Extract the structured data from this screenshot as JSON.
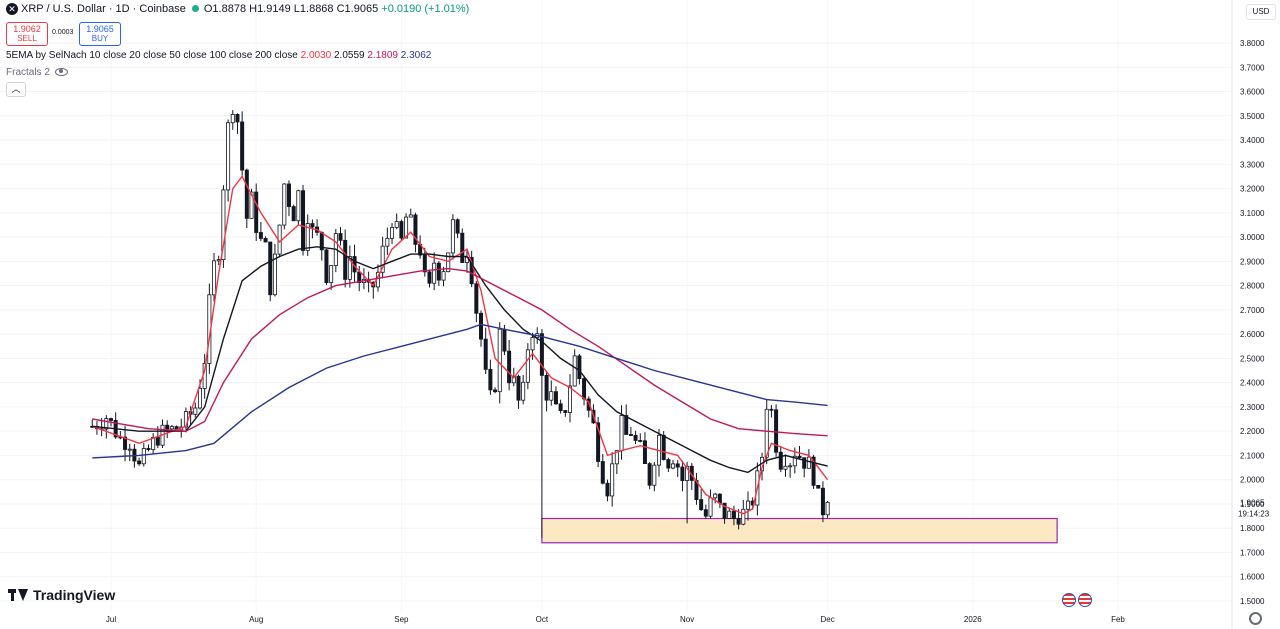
{
  "header": {
    "symbol": "XRP / U.S. Dollar · 1D · Coinbase",
    "open": "O1.8878",
    "high": "H1.9149",
    "low": "L1.8868",
    "close": "C1.9065",
    "change": "+0.0190 (+1.01%)",
    "sell_price": "1.9062",
    "sell_label": "SELL",
    "spread": "0.0003",
    "buy_price": "1.9065",
    "buy_label": "BUY",
    "currency": "USD"
  },
  "indicators": {
    "ema_label": "5EMA by SelNach 10 close 20 close 50 close 100 close 200 close",
    "ema_values": [
      "2.0030",
      "2.0559",
      "2.1809",
      "2.3062"
    ],
    "ema_colors": [
      "#f23645",
      "#131722",
      "#c2185b",
      "#283593"
    ],
    "fractals_label": "Fractals 2"
  },
  "branding": {
    "logo_text": "TradingView"
  },
  "colors": {
    "up": "#089981",
    "down": "#f23645",
    "candle": "#131722",
    "zone_fill": "#fde8c4",
    "zone_border": "#9c27b0"
  },
  "chart_data": {
    "type": "candlestick",
    "ylim": [
      1.5,
      3.9
    ],
    "y_ticks": [
      "3.8000",
      "3.7000",
      "3.6000",
      "3.5000",
      "3.4000",
      "3.3000",
      "3.2000",
      "3.1000",
      "3.0000",
      "2.9000",
      "2.8000",
      "2.7000",
      "2.6000",
      "2.5000",
      "2.4000",
      "2.3000",
      "2.2000",
      "2.1000",
      "2.0000",
      "1.9000",
      "1.8000",
      "1.7000",
      "1.6000",
      "1.5000"
    ],
    "x_ticks": [
      "Jul",
      "Aug",
      "Sep",
      "Oct",
      "Nov",
      "Dec",
      "2026",
      "Feb"
    ],
    "x_tick_days": [
      4,
      35,
      66,
      96,
      127,
      157,
      188,
      219
    ],
    "last_price": "1.9065",
    "countdown": "19:14:23",
    "support_zone": {
      "from_day": 96,
      "to_day": 206,
      "low": 1.74,
      "high": 1.84
    },
    "close_path": [
      [
        0,
        2.22
      ],
      [
        3,
        2.26
      ],
      [
        6,
        2.17
      ],
      [
        8,
        2.16
      ],
      [
        10,
        2.05
      ],
      [
        12,
        2.12
      ],
      [
        14,
        2.18
      ],
      [
        16,
        2.2
      ],
      [
        18,
        2.21
      ],
      [
        20,
        2.24
      ],
      [
        22,
        2.3
      ],
      [
        24,
        2.5
      ],
      [
        25,
        2.72
      ],
      [
        26,
        2.88
      ],
      [
        27,
        2.95
      ],
      [
        28,
        3.22
      ],
      [
        29,
        3.45
      ],
      [
        30,
        3.55
      ],
      [
        31,
        3.48
      ],
      [
        32,
        3.28
      ],
      [
        33,
        3.08
      ],
      [
        34,
        3.15
      ],
      [
        35,
        3.05
      ],
      [
        36,
        2.98
      ],
      [
        37,
        2.95
      ],
      [
        38,
        2.8
      ],
      [
        39,
        2.9
      ],
      [
        40,
        3.05
      ],
      [
        41,
        3.22
      ],
      [
        42,
        3.15
      ],
      [
        43,
        3.1
      ],
      [
        44,
        3.18
      ],
      [
        45,
        2.98
      ],
      [
        46,
        3.1
      ],
      [
        47,
        3.02
      ],
      [
        48,
        3.0
      ],
      [
        49,
        2.96
      ],
      [
        50,
        2.85
      ],
      [
        51,
        2.9
      ],
      [
        52,
        3.02
      ],
      [
        53,
        2.95
      ],
      [
        54,
        2.86
      ],
      [
        55,
        2.92
      ],
      [
        56,
        2.86
      ],
      [
        57,
        2.82
      ],
      [
        58,
        2.8
      ],
      [
        59,
        2.77
      ],
      [
        60,
        2.8
      ],
      [
        61,
        2.85
      ],
      [
        62,
        2.94
      ],
      [
        63,
        3.0
      ],
      [
        64,
        3.08
      ],
      [
        65,
        3.02
      ],
      [
        66,
        2.98
      ],
      [
        67,
        3.08
      ],
      [
        68,
        3.05
      ],
      [
        69,
        2.98
      ],
      [
        70,
        2.95
      ],
      [
        71,
        2.82
      ],
      [
        72,
        2.78
      ],
      [
        73,
        2.9
      ],
      [
        74,
        2.86
      ],
      [
        75,
        2.88
      ],
      [
        76,
        2.95
      ],
      [
        77,
        3.05
      ],
      [
        78,
        2.98
      ],
      [
        79,
        2.92
      ],
      [
        80,
        2.95
      ],
      [
        81,
        2.85
      ],
      [
        82,
        2.7
      ],
      [
        83,
        2.58
      ],
      [
        84,
        2.42
      ],
      [
        85,
        2.33
      ],
      [
        86,
        2.4
      ],
      [
        87,
        2.6
      ],
      [
        88,
        2.55
      ],
      [
        89,
        2.43
      ],
      [
        90,
        2.4
      ],
      [
        91,
        2.32
      ],
      [
        92,
        2.36
      ],
      [
        93,
        2.55
      ],
      [
        94,
        2.62
      ],
      [
        95,
        2.58
      ],
      [
        96,
        2.42
      ],
      [
        97,
        2.36
      ],
      [
        98,
        2.34
      ],
      [
        99,
        2.28
      ],
      [
        100,
        2.25
      ],
      [
        101,
        2.3
      ],
      [
        102,
        2.4
      ],
      [
        103,
        2.5
      ],
      [
        104,
        2.42
      ],
      [
        105,
        2.35
      ],
      [
        106,
        2.28
      ],
      [
        107,
        2.22
      ],
      [
        108,
        2.12
      ],
      [
        109,
        2.03
      ],
      [
        110,
        1.97
      ],
      [
        111,
        2.05
      ],
      [
        112,
        2.15
      ],
      [
        113,
        2.22
      ],
      [
        114,
        2.18
      ],
      [
        115,
        2.2
      ],
      [
        116,
        2.15
      ],
      [
        117,
        2.12
      ],
      [
        118,
        2.05
      ],
      [
        119,
        2.0
      ],
      [
        120,
        2.1
      ],
      [
        121,
        2.18
      ],
      [
        122,
        2.12
      ],
      [
        123,
        2.08
      ],
      [
        124,
        2.1
      ],
      [
        125,
        2.06
      ],
      [
        126,
        2.0
      ],
      [
        127,
        2.04
      ],
      [
        128,
        2.0
      ],
      [
        129,
        1.94
      ],
      [
        130,
        1.88
      ],
      [
        131,
        1.85
      ],
      [
        132,
        1.9
      ],
      [
        133,
        1.92
      ],
      [
        134,
        1.88
      ],
      [
        135,
        1.86
      ],
      [
        136,
        1.85
      ],
      [
        137,
        1.84
      ],
      [
        138,
        1.86
      ],
      [
        139,
        1.86
      ],
      [
        140,
        1.87
      ],
      [
        141,
        1.92
      ],
      [
        142,
        2.0
      ],
      [
        143,
        2.1
      ],
      [
        144,
        2.32
      ],
      [
        145,
        2.28
      ],
      [
        146,
        2.15
      ],
      [
        147,
        2.08
      ],
      [
        148,
        2.1
      ],
      [
        149,
        2.08
      ],
      [
        150,
        2.12
      ],
      [
        151,
        2.1
      ],
      [
        152,
        2.08
      ],
      [
        153,
        2.06
      ],
      [
        154,
        2.02
      ],
      [
        155,
        1.92
      ],
      [
        156,
        1.88
      ],
      [
        157,
        1.9065
      ]
    ],
    "series": [
      {
        "name": "EMA 10",
        "color": "#f23645",
        "points": [
          [
            0,
            2.22
          ],
          [
            10,
            2.15
          ],
          [
            20,
            2.22
          ],
          [
            24,
            2.45
          ],
          [
            27,
            2.85
          ],
          [
            30,
            3.2
          ],
          [
            32,
            3.25
          ],
          [
            36,
            3.1
          ],
          [
            40,
            2.98
          ],
          [
            44,
            3.05
          ],
          [
            48,
            3.03
          ],
          [
            52,
            2.98
          ],
          [
            56,
            2.88
          ],
          [
            60,
            2.8
          ],
          [
            64,
            2.95
          ],
          [
            68,
            3.02
          ],
          [
            72,
            2.92
          ],
          [
            76,
            2.9
          ],
          [
            80,
            2.95
          ],
          [
            83,
            2.78
          ],
          [
            86,
            2.5
          ],
          [
            90,
            2.42
          ],
          [
            94,
            2.52
          ],
          [
            98,
            2.42
          ],
          [
            102,
            2.38
          ],
          [
            106,
            2.32
          ],
          [
            110,
            2.1
          ],
          [
            113,
            2.12
          ],
          [
            117,
            2.14
          ],
          [
            121,
            2.12
          ],
          [
            125,
            2.1
          ],
          [
            128,
            2.02
          ],
          [
            131,
            1.94
          ],
          [
            135,
            1.89
          ],
          [
            139,
            1.86
          ],
          [
            141,
            1.88
          ],
          [
            143,
            2.05
          ],
          [
            145,
            2.15
          ],
          [
            149,
            2.12
          ],
          [
            153,
            2.1
          ],
          [
            157,
            2.0
          ]
        ]
      },
      {
        "name": "EMA 20",
        "color": "#131722",
        "points": [
          [
            0,
            2.22
          ],
          [
            10,
            2.2
          ],
          [
            20,
            2.2
          ],
          [
            24,
            2.3
          ],
          [
            28,
            2.58
          ],
          [
            32,
            2.82
          ],
          [
            36,
            2.88
          ],
          [
            40,
            2.92
          ],
          [
            44,
            2.95
          ],
          [
            48,
            2.96
          ],
          [
            52,
            2.95
          ],
          [
            56,
            2.9
          ],
          [
            60,
            2.87
          ],
          [
            64,
            2.9
          ],
          [
            68,
            2.93
          ],
          [
            72,
            2.93
          ],
          [
            76,
            2.92
          ],
          [
            80,
            2.92
          ],
          [
            84,
            2.8
          ],
          [
            88,
            2.7
          ],
          [
            92,
            2.62
          ],
          [
            96,
            2.57
          ],
          [
            100,
            2.5
          ],
          [
            104,
            2.45
          ],
          [
            108,
            2.35
          ],
          [
            112,
            2.28
          ],
          [
            116,
            2.24
          ],
          [
            120,
            2.2
          ],
          [
            124,
            2.16
          ],
          [
            128,
            2.12
          ],
          [
            132,
            2.08
          ],
          [
            136,
            2.05
          ],
          [
            140,
            2.03
          ],
          [
            144,
            2.08
          ],
          [
            148,
            2.1
          ],
          [
            152,
            2.08
          ],
          [
            157,
            2.0559
          ]
        ]
      },
      {
        "name": "EMA 50",
        "color": "#c2185b",
        "points": [
          [
            0,
            2.25
          ],
          [
            12,
            2.21
          ],
          [
            20,
            2.2
          ],
          [
            24,
            2.24
          ],
          [
            28,
            2.4
          ],
          [
            34,
            2.58
          ],
          [
            40,
            2.68
          ],
          [
            46,
            2.75
          ],
          [
            52,
            2.8
          ],
          [
            58,
            2.82
          ],
          [
            64,
            2.84
          ],
          [
            70,
            2.86
          ],
          [
            76,
            2.87
          ],
          [
            80,
            2.86
          ],
          [
            84,
            2.82
          ],
          [
            90,
            2.76
          ],
          [
            96,
            2.7
          ],
          [
            102,
            2.62
          ],
          [
            108,
            2.55
          ],
          [
            114,
            2.47
          ],
          [
            120,
            2.39
          ],
          [
            126,
            2.32
          ],
          [
            132,
            2.25
          ],
          [
            138,
            2.21
          ],
          [
            144,
            2.2
          ],
          [
            150,
            2.19
          ],
          [
            157,
            2.1809
          ]
        ]
      },
      {
        "name": "EMA 100",
        "color": "#283593",
        "points": [
          [
            0,
            2.09
          ],
          [
            10,
            2.1
          ],
          [
            20,
            2.12
          ],
          [
            26,
            2.15
          ],
          [
            34,
            2.28
          ],
          [
            42,
            2.38
          ],
          [
            50,
            2.46
          ],
          [
            58,
            2.51
          ],
          [
            66,
            2.55
          ],
          [
            74,
            2.59
          ],
          [
            80,
            2.62
          ],
          [
            83,
            2.64
          ],
          [
            88,
            2.62
          ],
          [
            96,
            2.59
          ],
          [
            104,
            2.55
          ],
          [
            112,
            2.5
          ],
          [
            120,
            2.45
          ],
          [
            128,
            2.41
          ],
          [
            136,
            2.37
          ],
          [
            144,
            2.33
          ],
          [
            150,
            2.32
          ],
          [
            157,
            2.3062
          ]
        ]
      }
    ]
  }
}
